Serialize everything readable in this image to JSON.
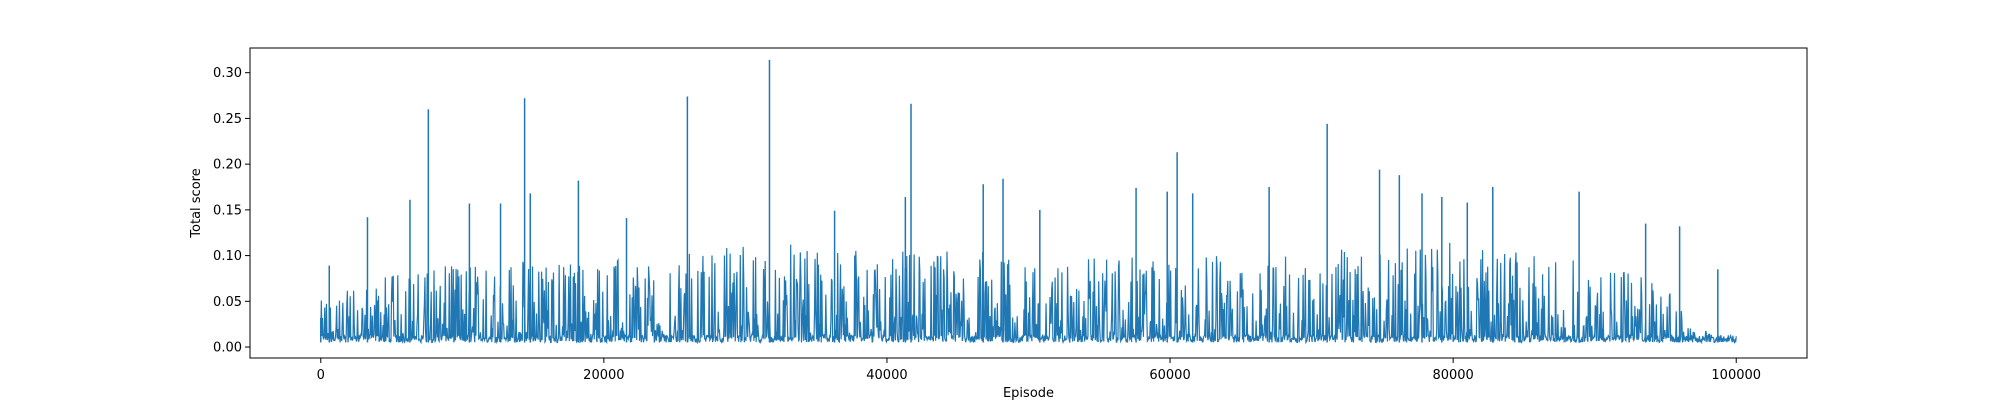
{
  "chart_data": {
    "type": "line",
    "title": "",
    "xlabel": "Episode",
    "ylabel": "Total score",
    "xlim": [
      -5000,
      105000
    ],
    "ylim": [
      -0.012,
      0.327
    ],
    "xticks": [
      0,
      20000,
      40000,
      60000,
      80000,
      100000
    ],
    "xtick_labels": [
      "0",
      "20000",
      "40000",
      "60000",
      "80000",
      "100000"
    ],
    "yticks": [
      0.0,
      0.05,
      0.1,
      0.15,
      0.2,
      0.25,
      0.3
    ],
    "ytick_labels": [
      "0.00",
      "0.05",
      "0.10",
      "0.15",
      "0.20",
      "0.25",
      "0.30"
    ],
    "grid": false,
    "legend": "none",
    "series_color": "#1f77b4",
    "x_range": [
      0,
      100000
    ],
    "baseline": 0.005,
    "peaks": [
      {
        "x": 0,
        "y": 0.032
      },
      {
        "x": 600,
        "y": 0.089
      },
      {
        "x": 3300,
        "y": 0.142
      },
      {
        "x": 6300,
        "y": 0.161
      },
      {
        "x": 7600,
        "y": 0.26
      },
      {
        "x": 10500,
        "y": 0.157
      },
      {
        "x": 12700,
        "y": 0.157
      },
      {
        "x": 14400,
        "y": 0.272
      },
      {
        "x": 14800,
        "y": 0.168
      },
      {
        "x": 18200,
        "y": 0.182
      },
      {
        "x": 21600,
        "y": 0.141
      },
      {
        "x": 25900,
        "y": 0.274
      },
      {
        "x": 31700,
        "y": 0.314
      },
      {
        "x": 36300,
        "y": 0.149
      },
      {
        "x": 41300,
        "y": 0.164
      },
      {
        "x": 41700,
        "y": 0.266
      },
      {
        "x": 46800,
        "y": 0.178
      },
      {
        "x": 48200,
        "y": 0.184
      },
      {
        "x": 50800,
        "y": 0.15
      },
      {
        "x": 57600,
        "y": 0.174
      },
      {
        "x": 59800,
        "y": 0.17
      },
      {
        "x": 60500,
        "y": 0.213
      },
      {
        "x": 61600,
        "y": 0.168
      },
      {
        "x": 67000,
        "y": 0.175
      },
      {
        "x": 71100,
        "y": 0.244
      },
      {
        "x": 74800,
        "y": 0.194
      },
      {
        "x": 76200,
        "y": 0.188
      },
      {
        "x": 77800,
        "y": 0.168
      },
      {
        "x": 79200,
        "y": 0.164
      },
      {
        "x": 81000,
        "y": 0.158
      },
      {
        "x": 82800,
        "y": 0.175
      },
      {
        "x": 88900,
        "y": 0.17
      },
      {
        "x": 93600,
        "y": 0.135
      },
      {
        "x": 96000,
        "y": 0.132
      },
      {
        "x": 98700,
        "y": 0.085
      },
      {
        "x": 100000,
        "y": 0.005
      }
    ],
    "envelope": [
      {
        "x": 0,
        "y": 0.045
      },
      {
        "x": 5000,
        "y": 0.07
      },
      {
        "x": 10000,
        "y": 0.08
      },
      {
        "x": 20000,
        "y": 0.085
      },
      {
        "x": 30000,
        "y": 0.1
      },
      {
        "x": 40000,
        "y": 0.095
      },
      {
        "x": 50000,
        "y": 0.09
      },
      {
        "x": 60000,
        "y": 0.085
      },
      {
        "x": 70000,
        "y": 0.095
      },
      {
        "x": 80000,
        "y": 0.1
      },
      {
        "x": 90000,
        "y": 0.085
      },
      {
        "x": 95000,
        "y": 0.06
      },
      {
        "x": 97000,
        "y": 0.02
      },
      {
        "x": 100000,
        "y": 0.006
      }
    ]
  }
}
